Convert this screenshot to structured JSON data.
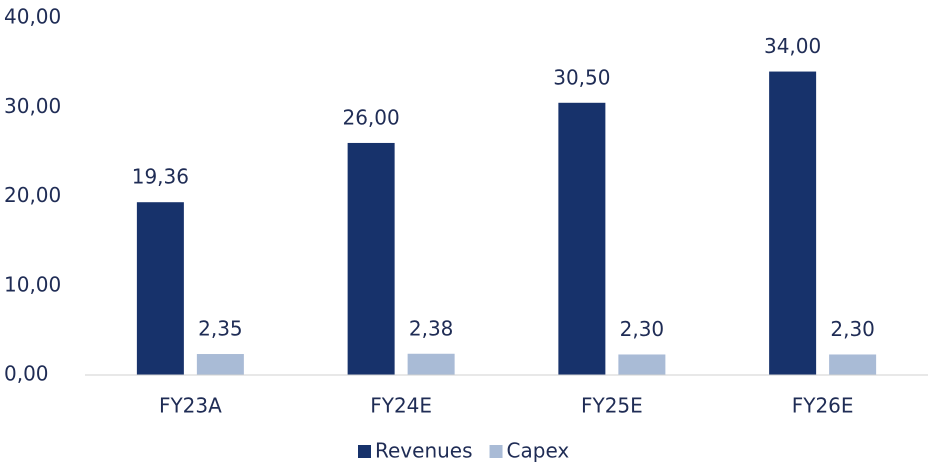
{
  "chart_data": {
    "type": "bar",
    "categories": [
      "FY23A",
      "FY24E",
      "FY25E",
      "FY26E"
    ],
    "series": [
      {
        "name": "Revenues",
        "color": "#17326b",
        "values": [
          19.36,
          26,
          30.5,
          34
        ],
        "value_labels": [
          "19,36",
          "26,00",
          "30,50",
          "34,00"
        ]
      },
      {
        "name": "Capex",
        "color": "#a9bbd6",
        "values": [
          2.35,
          2.38,
          2.3,
          2.3
        ],
        "value_labels": [
          "2,35",
          "2,38",
          "2,30",
          "2,30"
        ]
      }
    ],
    "ylim": [
      0,
      40
    ],
    "yticks": [
      {
        "value": 0,
        "label": "0,00"
      },
      {
        "value": 10,
        "label": "10,00"
      },
      {
        "value": 20,
        "label": "20,00"
      },
      {
        "value": 30,
        "label": "30,00"
      },
      {
        "value": 40,
        "label": "40,00"
      }
    ],
    "legend": "bottom"
  }
}
